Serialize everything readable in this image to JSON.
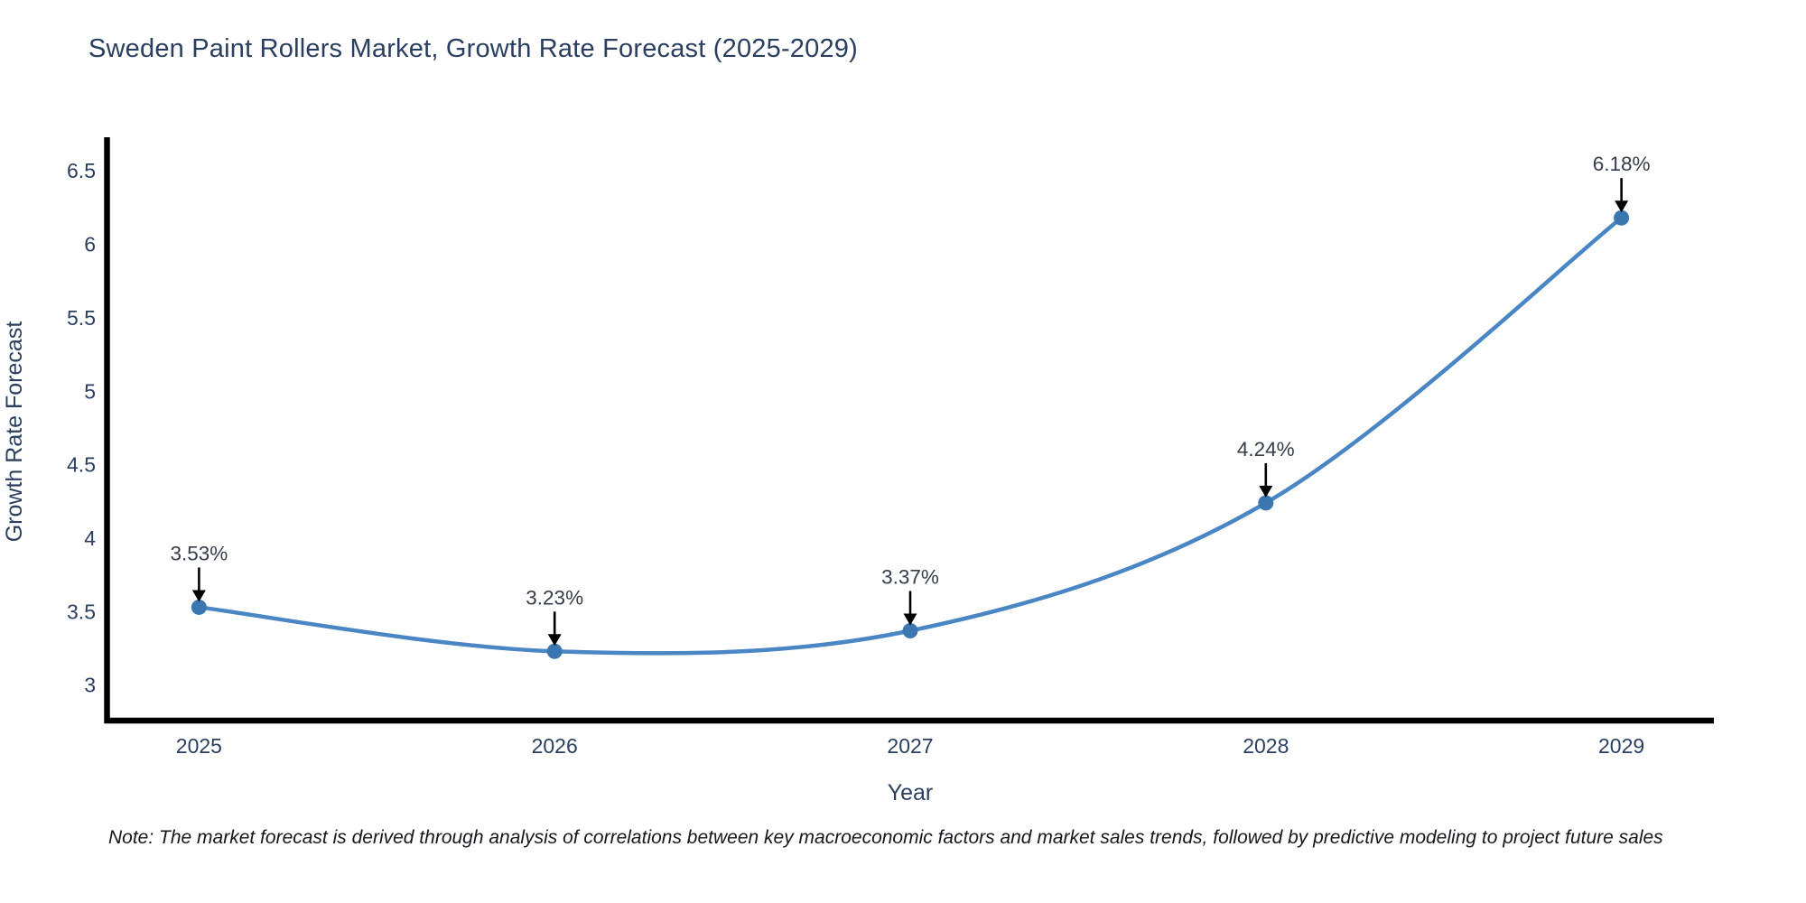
{
  "title": "Sweden Paint Rollers Market, Growth Rate Forecast (2025-2029)",
  "note": "Note: The market forecast is derived through analysis of correlations between key macroeconomic factors and market sales trends, followed by predictive modeling to project future sales",
  "colors": {
    "title_text": "#2a3f5f",
    "axis_text": "#2a3f5f",
    "annotation_text": "#353d4a",
    "note_text": "#14181c",
    "line": "#4a86c4",
    "marker": "#3a76b0",
    "spine": "#000000",
    "arrow": "#000000"
  },
  "chart_data": {
    "type": "line",
    "title": "Sweden Paint Rollers Market, Growth Rate Forecast (2025-2029)",
    "xlabel": "Year",
    "ylabel": "Growth Rate Forecast",
    "x": [
      2025,
      2026,
      2027,
      2028,
      2029
    ],
    "values": [
      3.53,
      3.23,
      3.37,
      4.24,
      6.18
    ],
    "point_labels": [
      "3.53%",
      "3.23%",
      "3.37%",
      "4.24%",
      "6.18%"
    ],
    "xtick_labels": [
      "2025",
      "2026",
      "2027",
      "2028",
      "2029"
    ],
    "yticks": [
      3,
      3.5,
      4,
      4.5,
      5,
      5.5,
      6,
      6.5
    ],
    "ytick_labels": [
      "3",
      "3.5",
      "4",
      "4.5",
      "5",
      "5.5",
      "6",
      "6.5"
    ],
    "xlim": [
      2024.74,
      2029.26
    ],
    "ylim": [
      2.74,
      6.71
    ],
    "grid": false,
    "legend_position": "none",
    "curve_style": "smooth-spline",
    "marker_style": "circle",
    "annotation_style": "value labels with downward black arrows above each point"
  }
}
